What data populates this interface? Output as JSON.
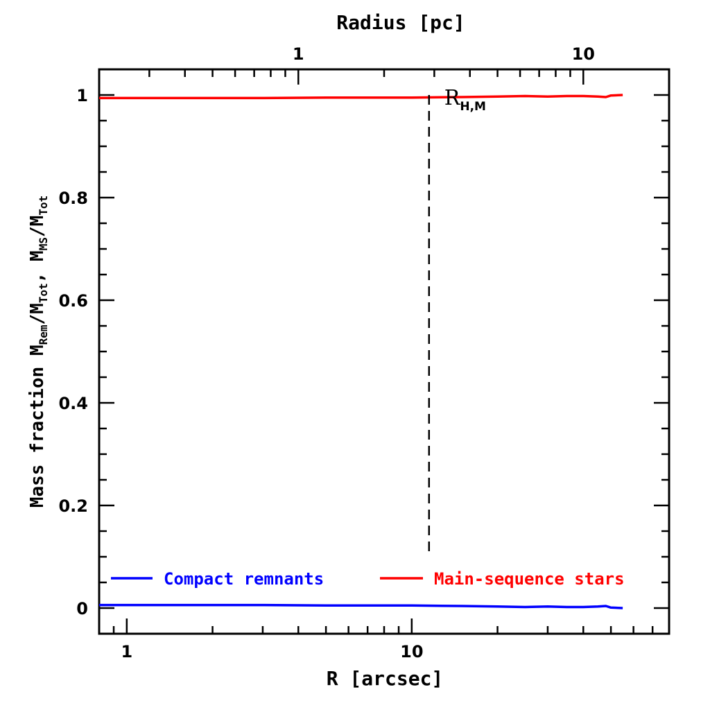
{
  "chart_data": {
    "type": "line",
    "xlabel": "R [arcsec]",
    "x2label": "Radius [pc]",
    "ylabel": {
      "prefix": "Mass fraction  M",
      "sub1": "Rem",
      "mid1": "/M",
      "sub2": "Tot",
      "mid2": ", M",
      "sub3": "MS",
      "mid3": "/M",
      "sub4": "Tot"
    },
    "x_scale": "log",
    "xlim": [
      0.8,
      80
    ],
    "x2lim": [
      0.2,
      20
    ],
    "ylim": [
      -0.05,
      1.05
    ],
    "x_ticklabels": [
      {
        "value": 1,
        "label": "1"
      },
      {
        "value": 10,
        "label": "10"
      }
    ],
    "x2_ticklabels": [
      {
        "value": 1,
        "label": "1"
      },
      {
        "value": 10,
        "label": "10"
      }
    ],
    "y_ticklabels": [
      {
        "value": 0,
        "label": "0"
      },
      {
        "value": 0.2,
        "label": "0.2"
      },
      {
        "value": 0.4,
        "label": "0.4"
      },
      {
        "value": 0.6,
        "label": "0.6"
      },
      {
        "value": 0.8,
        "label": "0.8"
      },
      {
        "value": 1,
        "label": "1"
      }
    ],
    "series": [
      {
        "name": "Compact remnants",
        "color": "#0000ff",
        "x": [
          0.8,
          1,
          2,
          3,
          5,
          8,
          10,
          15,
          20,
          25,
          30,
          35,
          40,
          45,
          48,
          50,
          55
        ],
        "y": [
          0.006,
          0.006,
          0.006,
          0.006,
          0.005,
          0.005,
          0.005,
          0.004,
          0.003,
          0.002,
          0.003,
          0.002,
          0.002,
          0.003,
          0.004,
          0.001,
          0.0
        ]
      },
      {
        "name": "Main-sequence stars",
        "color": "#ff0000",
        "x": [
          0.8,
          1,
          2,
          3,
          5,
          8,
          10,
          15,
          20,
          25,
          30,
          35,
          40,
          45,
          48,
          50,
          55
        ],
        "y": [
          0.994,
          0.994,
          0.994,
          0.994,
          0.995,
          0.995,
          0.995,
          0.996,
          0.997,
          0.998,
          0.997,
          0.998,
          0.998,
          0.997,
          0.996,
          0.999,
          1.0
        ]
      }
    ],
    "vline": {
      "x": 11.5,
      "y_top": 1.0,
      "y_bottom": 0.1,
      "style": "dashed",
      "label_main": "R",
      "label_sub": "H,M"
    },
    "legend": {
      "placement": "bottom",
      "items": [
        "Compact remnants",
        "Main-sequence stars"
      ]
    },
    "grid": false
  }
}
